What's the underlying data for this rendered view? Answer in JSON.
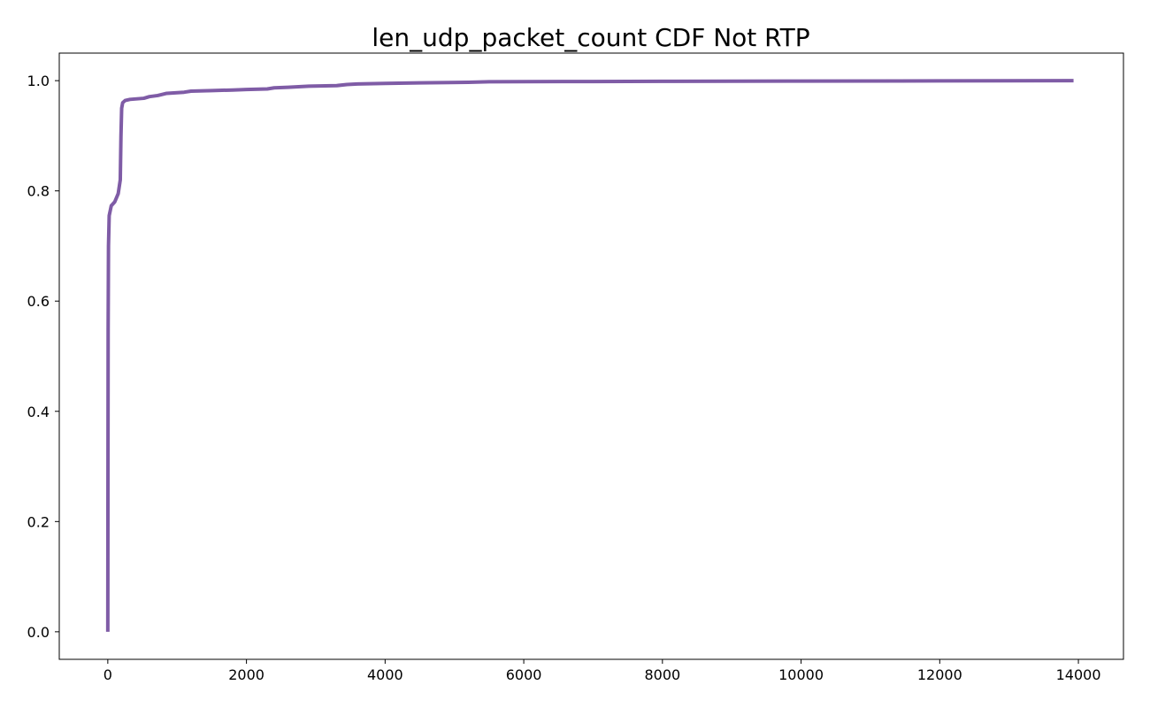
{
  "chart_data": {
    "type": "line",
    "title": "len_udp_packet_count CDF Not RTP",
    "xlabel": "",
    "ylabel": "",
    "xlim": [
      -700,
      14650
    ],
    "ylim": [
      -0.05,
      1.05
    ],
    "grid": false,
    "x_ticks": [
      0,
      2000,
      4000,
      6000,
      8000,
      10000,
      12000,
      14000
    ],
    "x_tick_labels": [
      "0",
      "2000",
      "4000",
      "6000",
      "8000",
      "10000",
      "12000",
      "14000"
    ],
    "y_ticks": [
      0.0,
      0.2,
      0.4,
      0.6,
      0.8,
      1.0
    ],
    "y_tick_labels": [
      "0.0",
      "0.2",
      "0.4",
      "0.6",
      "0.8",
      "1.0"
    ],
    "series": [
      {
        "color": "#7f5ca6",
        "x": [
          0,
          2,
          5,
          10,
          20,
          50,
          100,
          150,
          180,
          190,
          200,
          215,
          250,
          320,
          420,
          520,
          600,
          720,
          850,
          1100,
          1200,
          1500,
          1800,
          2000,
          2300,
          2400,
          2600,
          2900,
          3300,
          3450,
          3600,
          4000,
          4500,
          5200,
          5500,
          6000,
          7000,
          8000,
          10000,
          12000,
          13930
        ],
        "y": [
          0.0,
          0.25,
          0.55,
          0.7,
          0.755,
          0.773,
          0.78,
          0.795,
          0.82,
          0.9,
          0.95,
          0.96,
          0.964,
          0.966,
          0.967,
          0.968,
          0.971,
          0.973,
          0.977,
          0.979,
          0.981,
          0.982,
          0.983,
          0.984,
          0.985,
          0.987,
          0.988,
          0.99,
          0.991,
          0.993,
          0.994,
          0.995,
          0.996,
          0.997,
          0.998,
          0.9982,
          0.9985,
          0.9988,
          0.9992,
          0.9996,
          1.0
        ]
      }
    ]
  }
}
